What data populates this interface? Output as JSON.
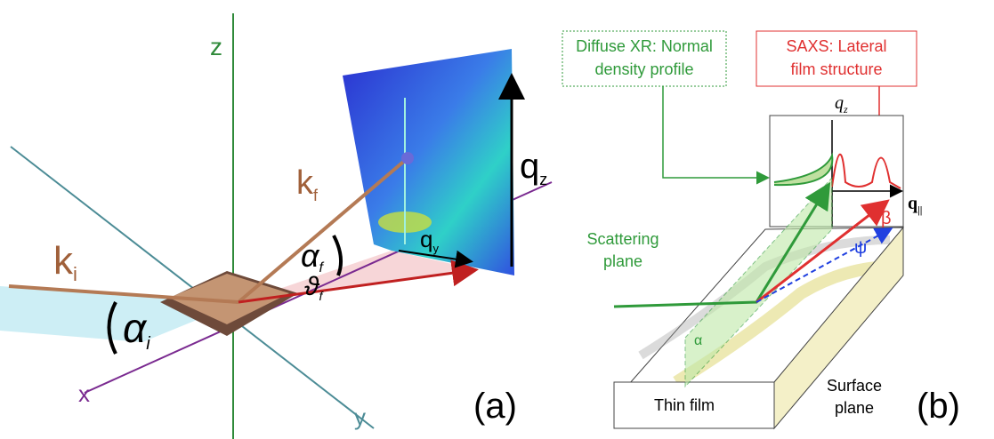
{
  "panel_a": {
    "axes": {
      "z": "z",
      "x": "x",
      "y": "y"
    },
    "k_i": {
      "main": "k",
      "sub": "i"
    },
    "k_f": {
      "main": "k",
      "sub": "f"
    },
    "alpha_i": {
      "main": "α",
      "sub": "i"
    },
    "alpha_f": {
      "main": "α",
      "sub": "f"
    },
    "theta": {
      "main": "ϑ",
      "sub": "f"
    },
    "q_y": {
      "main": "q",
      "sub": "y"
    },
    "q_z": {
      "main": "q",
      "sub": "z"
    },
    "label": "(a)"
  },
  "panel_b": {
    "callout_green": [
      "Diffuse XR: Normal",
      "density profile"
    ],
    "callout_red": [
      "SAXS: Lateral",
      "film structure"
    ],
    "q_z": {
      "main": "q",
      "sub": "z"
    },
    "q_par": {
      "main": "q",
      "sub": "||"
    },
    "beta": "β",
    "psi": "ψ",
    "alpha": "α",
    "scattering_plane": [
      "Scattering",
      "plane"
    ],
    "thin_film": "Thin film",
    "surface_plane": [
      "Surface",
      "plane"
    ],
    "label": "(b)"
  }
}
